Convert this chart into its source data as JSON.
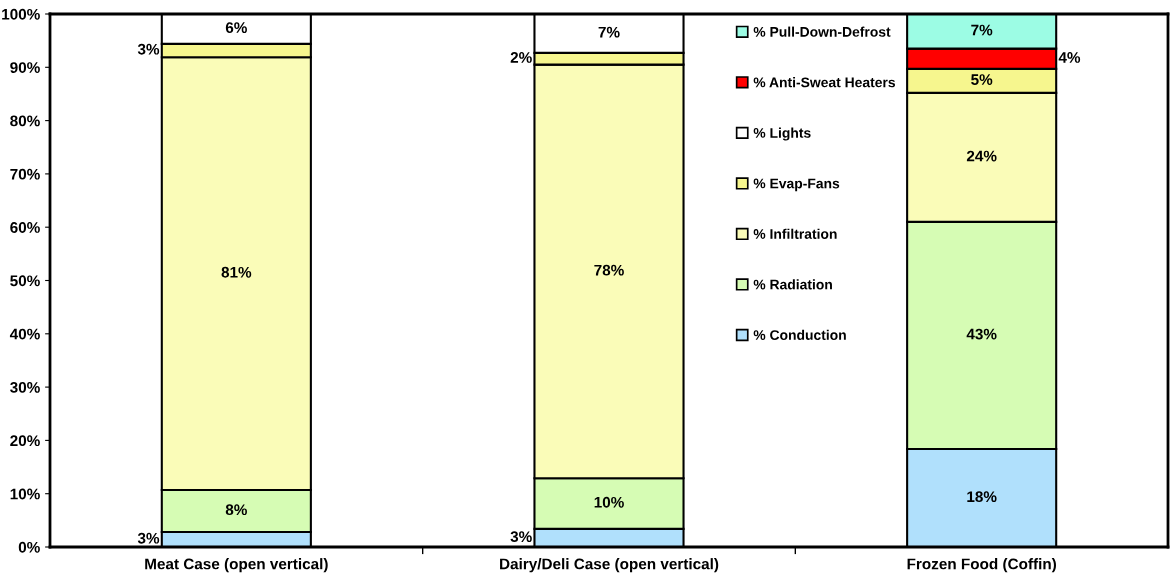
{
  "chart_data": {
    "type": "bar",
    "stacked": true,
    "categories": [
      "Meat Case (open vertical)",
      "Dairy/Deli Case (open vertical)",
      "Frozen Food (Coffin)"
    ],
    "series": [
      {
        "name": "% Conduction",
        "color": "#b0e0fc",
        "values": [
          2.8,
          3.4,
          18.4
        ],
        "value_labels": [
          "3%",
          "3%",
          "18%"
        ]
      },
      {
        "name": "% Radiation",
        "color": "#d6fcb4",
        "values": [
          7.9,
          9.5,
          42.6
        ],
        "value_labels": [
          "8%",
          "10%",
          "43%"
        ]
      },
      {
        "name": "% Infiltration",
        "color": "#fafcb8",
        "values": [
          81.2,
          77.6,
          24.2
        ],
        "value_labels": [
          "81%",
          "78%",
          "24%"
        ]
      },
      {
        "name": "% Evap-Fans",
        "color": "#f6f68e",
        "values": [
          2.5,
          2.2,
          4.5
        ],
        "value_labels": [
          "3%",
          "2%",
          "5%"
        ]
      },
      {
        "name": "% Lights",
        "color": "#ffffff",
        "values": [
          5.6,
          7.3,
          null
        ],
        "value_labels": [
          "6%",
          "7%",
          null
        ]
      },
      {
        "name": "% Anti-Sweat Heaters",
        "color": "#ff0000",
        "values": [
          null,
          null,
          3.8
        ],
        "value_labels": [
          null,
          null,
          "4%"
        ]
      },
      {
        "name": "% Pull-Down-Defrost",
        "color": "#9cfce4",
        "values": [
          null,
          null,
          6.5
        ],
        "value_labels": [
          null,
          null,
          "7%"
        ]
      }
    ],
    "ylim": [
      0,
      100
    ],
    "yticks": [
      {
        "value": 0,
        "label": "0%"
      },
      {
        "value": 10,
        "label": "10%"
      },
      {
        "value": 20,
        "label": "20%"
      },
      {
        "value": 30,
        "label": "30%"
      },
      {
        "value": 40,
        "label": "40%"
      },
      {
        "value": 50,
        "label": "50%"
      },
      {
        "value": 60,
        "label": "60%"
      },
      {
        "value": 70,
        "label": "70%"
      },
      {
        "value": 80,
        "label": "80%"
      },
      {
        "value": 90,
        "label": "90%"
      },
      {
        "value": 100,
        "label": "100%"
      }
    ],
    "legend": "top right",
    "grid": false
  }
}
